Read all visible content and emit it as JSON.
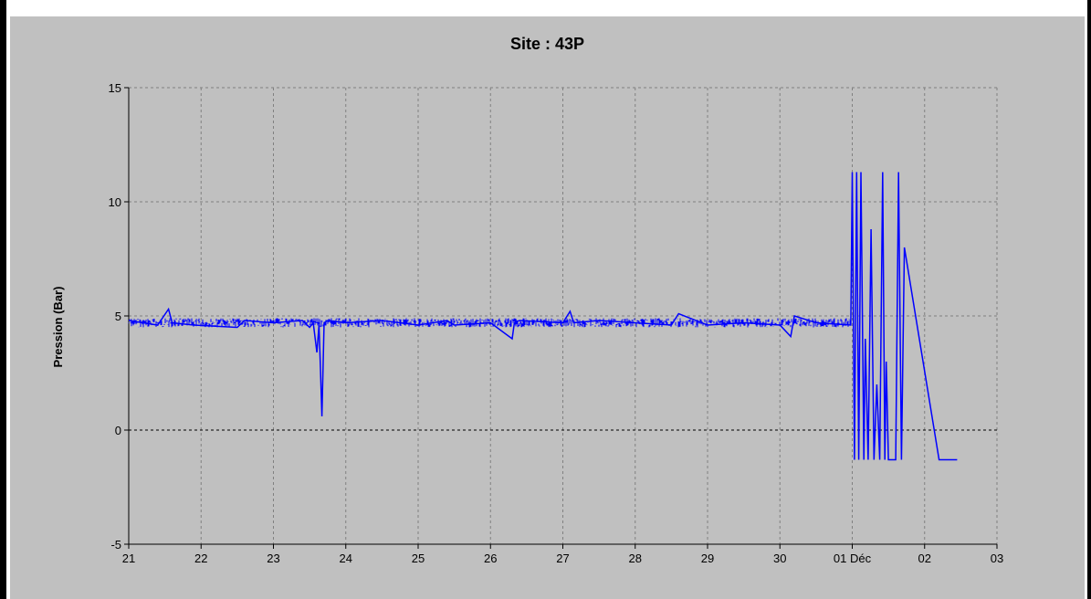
{
  "chart_data": {
    "type": "line",
    "title": "Site :  43P",
    "xlabel": "",
    "ylabel": "Pression  (Bar)",
    "x_tick_labels": [
      "21",
      "22",
      "23",
      "24",
      "25",
      "26",
      "27",
      "28",
      "29",
      "30",
      "01 Déc",
      "02",
      "03"
    ],
    "xlim": [
      21,
      33
    ],
    "ylim": [
      -5,
      15
    ],
    "y_ticks": [
      -5,
      0,
      5,
      10,
      15
    ],
    "y_tick_labels": [
      "-5",
      "0",
      "5",
      "10",
      "15"
    ],
    "grid": true,
    "zero_line": true,
    "colors": {
      "series": "#0000ff",
      "background": "#c0c0c0",
      "grid": "#808080"
    },
    "series": [
      {
        "name": "",
        "x": [
          21.0,
          21.4,
          21.55,
          21.6,
          21.9,
          22.5,
          22.6,
          23.0,
          23.4,
          23.5,
          23.55,
          23.6,
          23.63,
          23.65,
          23.67,
          23.7,
          23.75,
          24.0,
          24.5,
          25.0,
          25.4,
          25.5,
          26.0,
          26.3,
          26.33,
          26.4,
          27.0,
          27.1,
          27.15,
          27.5,
          28.0,
          28.5,
          28.6,
          29.0,
          29.5,
          30.0,
          30.15,
          30.2,
          30.5,
          30.98,
          31.0,
          31.03,
          31.06,
          31.09,
          31.12,
          31.16,
          31.18,
          31.22,
          31.26,
          31.3,
          31.34,
          31.38,
          31.42,
          31.45,
          31.47,
          31.5,
          31.6,
          31.64,
          31.68,
          31.72,
          32.2,
          32.45
        ],
        "values": [
          4.8,
          4.6,
          5.3,
          4.7,
          4.6,
          4.5,
          4.8,
          4.7,
          4.8,
          4.5,
          4.7,
          3.4,
          4.6,
          2.7,
          0.6,
          4.7,
          4.8,
          4.7,
          4.8,
          4.6,
          4.8,
          4.6,
          4.7,
          4.0,
          4.7,
          4.8,
          4.7,
          5.2,
          4.7,
          4.8,
          4.7,
          4.6,
          5.1,
          4.6,
          4.7,
          4.6,
          4.1,
          5.0,
          4.7,
          4.6,
          11.3,
          -1.3,
          11.3,
          -1.3,
          11.3,
          -1.3,
          4.0,
          -1.3,
          8.8,
          -1.3,
          2.0,
          -1.3,
          11.3,
          -1.3,
          3.0,
          -1.3,
          -1.3,
          11.3,
          -1.3,
          8.0,
          -1.3,
          -1.3
        ]
      }
    ]
  }
}
